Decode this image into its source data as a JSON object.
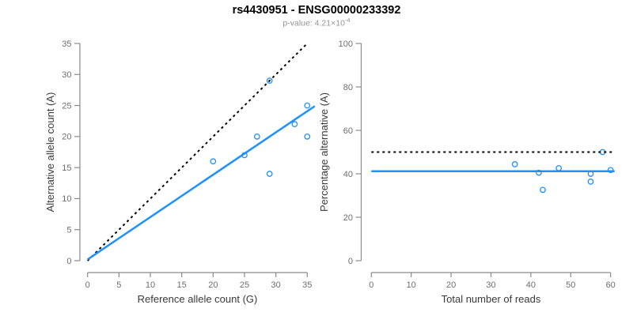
{
  "header": {
    "title": "rs4430951 - ENSG00000233392",
    "pvalue_prefix": "p-value: 4.21×10",
    "pvalue_exponent": "-4"
  },
  "colors": {
    "accent_blue": "#1E90FF",
    "dashed_black": "#000000",
    "axis_line": "#8a8a8a",
    "tick_label": "#6e6e6e",
    "axis_title": "#3a3a3a",
    "subtitle_gray": "#949494"
  },
  "chart_data": [
    {
      "type": "scatter",
      "name": "allele-counts-panel",
      "xlabel": "Reference allele count (G)",
      "ylabel": "Alternative allele count (A)",
      "xlim": [
        0,
        35
      ],
      "ylim": [
        0,
        35
      ],
      "xticks": [
        0,
        5,
        10,
        15,
        20,
        25,
        30,
        35
      ],
      "yticks": [
        0,
        5,
        10,
        15,
        20,
        25,
        30,
        35
      ],
      "grid": false,
      "points": [
        [
          20,
          16
        ],
        [
          25,
          17
        ],
        [
          27,
          20
        ],
        [
          29,
          29
        ],
        [
          29,
          14
        ],
        [
          33,
          22
        ],
        [
          35,
          25
        ],
        [
          35,
          20
        ]
      ],
      "lines": [
        {
          "name": "identity-line",
          "style": "dashed",
          "color": "#000000",
          "x1": 0,
          "y1": 0,
          "x2": 35,
          "y2": 35
        },
        {
          "name": "fit-line",
          "style": "solid",
          "color": "#1E90FF",
          "x1": 0,
          "y1": 0.2,
          "x2": 36.2,
          "y2": 24.9
        }
      ]
    },
    {
      "type": "scatter",
      "name": "percentage-panel",
      "xlabel": "Total number of reads",
      "ylabel": "Percentage alternative (A)",
      "xlim": [
        0,
        60
      ],
      "ylim": [
        0,
        100
      ],
      "xticks": [
        0,
        10,
        20,
        30,
        40,
        50,
        60
      ],
      "yticks": [
        0,
        20,
        40,
        60,
        80,
        100
      ],
      "grid": false,
      "points": [
        [
          36,
          44.4
        ],
        [
          42,
          40.5
        ],
        [
          43,
          32.6
        ],
        [
          47,
          42.6
        ],
        [
          55,
          40
        ],
        [
          55,
          36.4
        ],
        [
          58,
          50
        ],
        [
          60,
          41.7
        ]
      ],
      "lines": [
        {
          "name": "expected-50pct-line",
          "style": "dashed",
          "color": "#000000",
          "x1": 0,
          "y1": 50,
          "x2": 61,
          "y2": 50
        },
        {
          "name": "observed-ratio-line",
          "style": "solid",
          "color": "#1E90FF",
          "x1": 0,
          "y1": 41.2,
          "x2": 61,
          "y2": 41.2
        }
      ]
    }
  ]
}
